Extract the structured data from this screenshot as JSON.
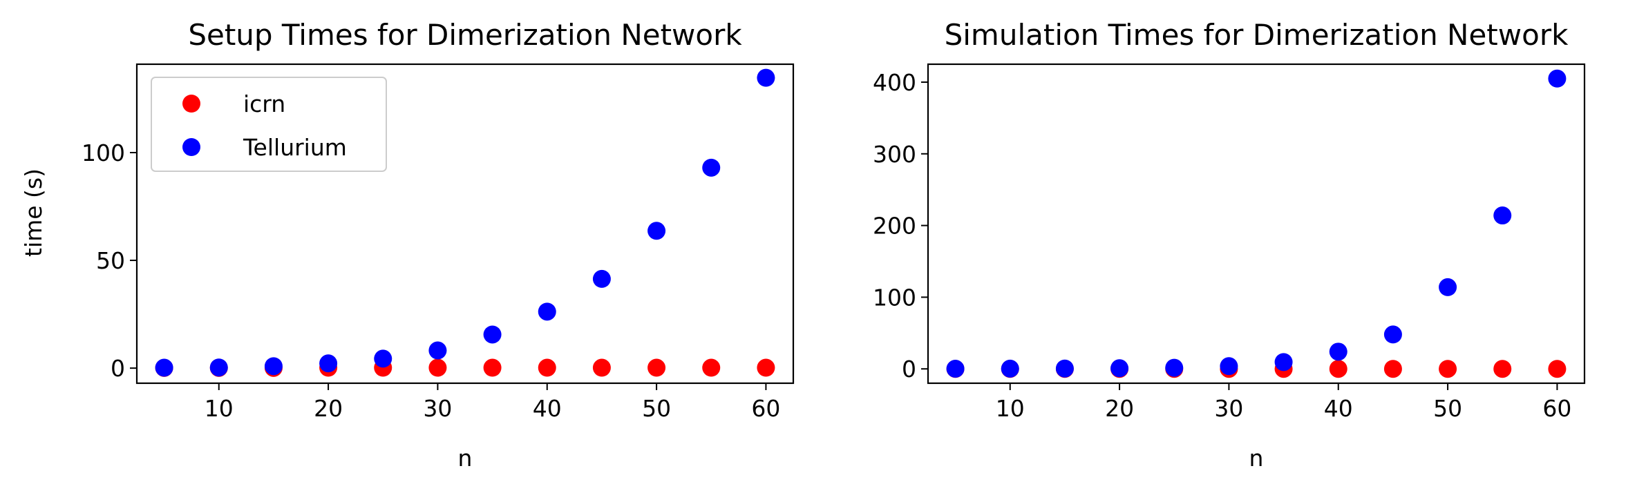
{
  "chart_data": [
    {
      "type": "scatter",
      "title": "Setup Times for Dimerization Network",
      "xlabel": "n",
      "ylabel": "time (s)",
      "xlim": [
        2.5,
        62.5
      ],
      "ylim": [
        -7,
        141
      ],
      "xticks": [
        10,
        20,
        30,
        40,
        50,
        60
      ],
      "yticks": [
        0,
        50,
        100
      ],
      "grid": false,
      "legend": "top-left",
      "x": [
        5,
        10,
        15,
        20,
        25,
        30,
        35,
        40,
        45,
        50,
        55,
        60
      ],
      "series": [
        {
          "name": "icrn",
          "color": "#ff0000",
          "values": [
            0.1,
            0.1,
            0.1,
            0.2,
            0.2,
            0.2,
            0.2,
            0.2,
            0.2,
            0.2,
            0.2,
            0.2
          ]
        },
        {
          "name": "Tellurium",
          "color": "#0000ff",
          "values": [
            0.2,
            0.3,
            0.9,
            2.2,
            4.4,
            8.2,
            15.6,
            26.2,
            41.4,
            63.7,
            93.0,
            134.7
          ]
        }
      ]
    },
    {
      "type": "scatter",
      "title": "Simulation Times for Dimerization Network",
      "xlabel": "n",
      "ylabel": "",
      "xlim": [
        2.5,
        62.5
      ],
      "ylim": [
        -20,
        425
      ],
      "xticks": [
        10,
        20,
        30,
        40,
        50,
        60
      ],
      "yticks": [
        0,
        100,
        200,
        300,
        400
      ],
      "grid": false,
      "legend": "",
      "x": [
        5,
        10,
        15,
        20,
        25,
        30,
        35,
        40,
        45,
        50,
        55,
        60
      ],
      "series": [
        {
          "name": "icrn",
          "color": "#ff0000",
          "values": [
            0,
            0,
            0,
            0,
            0,
            0,
            0,
            0,
            0,
            0,
            0,
            0
          ]
        },
        {
          "name": "Tellurium",
          "color": "#0000ff",
          "values": [
            0.2,
            0.3,
            0.5,
            0.9,
            1.5,
            3.8,
            9.5,
            24.0,
            48.0,
            114.0,
            214.0,
            405.0
          ]
        }
      ]
    }
  ]
}
